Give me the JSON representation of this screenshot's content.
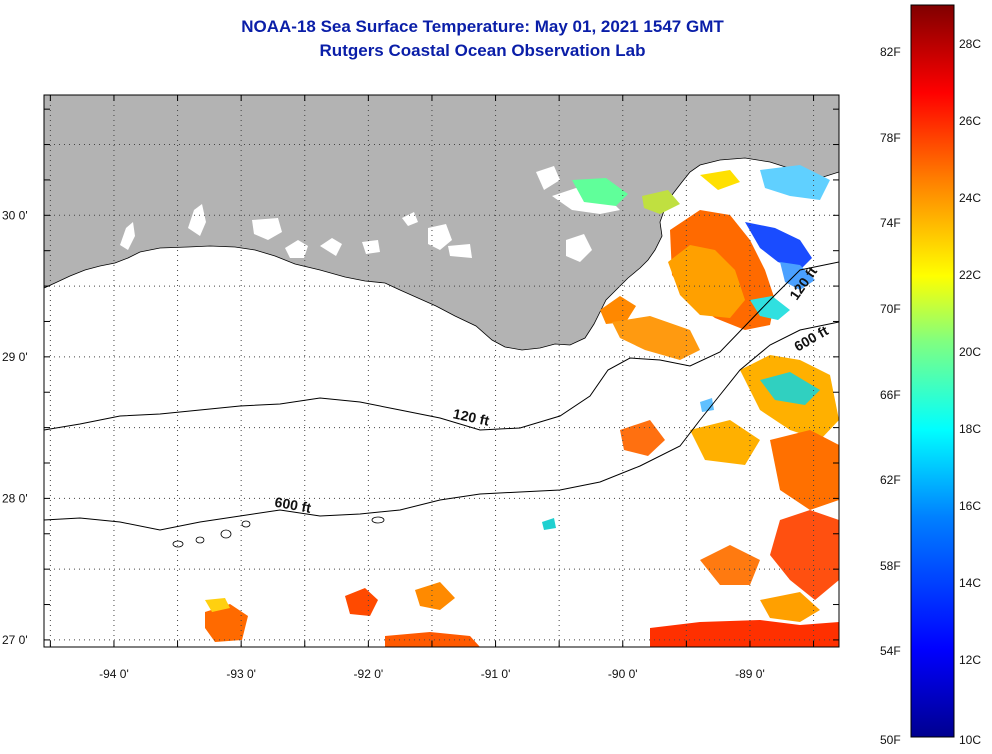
{
  "title": {
    "line1": "NOAA-18 Sea Surface Temperature:  May 01, 2021 1547 GMT",
    "line2": "Rutgers Coastal Ocean Observation Lab"
  },
  "map": {
    "lon_range": [
      -94.55,
      -88.3
    ],
    "lat_range": [
      26.95,
      30.85
    ],
    "lon_ticks": [
      {
        "value": -94,
        "label": "-94 0'"
      },
      {
        "value": -93,
        "label": "-93 0'"
      },
      {
        "value": -92,
        "label": "-92 0'"
      },
      {
        "value": -91,
        "label": "-91 0'"
      },
      {
        "value": -90,
        "label": "-90 0'"
      },
      {
        "value": -89,
        "label": "-89 0'"
      }
    ],
    "lat_ticks": [
      {
        "value": 30,
        "label": "30 0'"
      },
      {
        "value": 29,
        "label": "29 0'"
      },
      {
        "value": 28,
        "label": "28 0'"
      },
      {
        "value": 27,
        "label": "27 0'"
      }
    ],
    "contour_labels": [
      {
        "text": "120 ft",
        "lon": -91.2,
        "lat": 28.54
      },
      {
        "text": "600 ft",
        "lon": -92.6,
        "lat": 27.92
      },
      {
        "text": "120 ft",
        "lon": -88.55,
        "lat": 29.5
      },
      {
        "text": "600 ft",
        "lon": -88.5,
        "lat": 29.1
      }
    ],
    "colors": {
      "land": "#b3b3b3",
      "water": "#ffffff",
      "frame": "#000000"
    }
  },
  "colorbar": {
    "fahrenheit_labels": [
      "82F",
      "78F",
      "74F",
      "70F",
      "66F",
      "62F",
      "58F",
      "54F",
      "50F"
    ],
    "celsius_labels": [
      "28C",
      "26C",
      "24C",
      "22C",
      "20C",
      "18C",
      "16C",
      "14C",
      "12C",
      "10C"
    ],
    "range_c": [
      10,
      29
    ],
    "colormap": [
      "#00008f",
      "#0000ff",
      "#0080ff",
      "#00ffff",
      "#80ff80",
      "#ffff00",
      "#ff8000",
      "#ff0000",
      "#800000"
    ]
  }
}
